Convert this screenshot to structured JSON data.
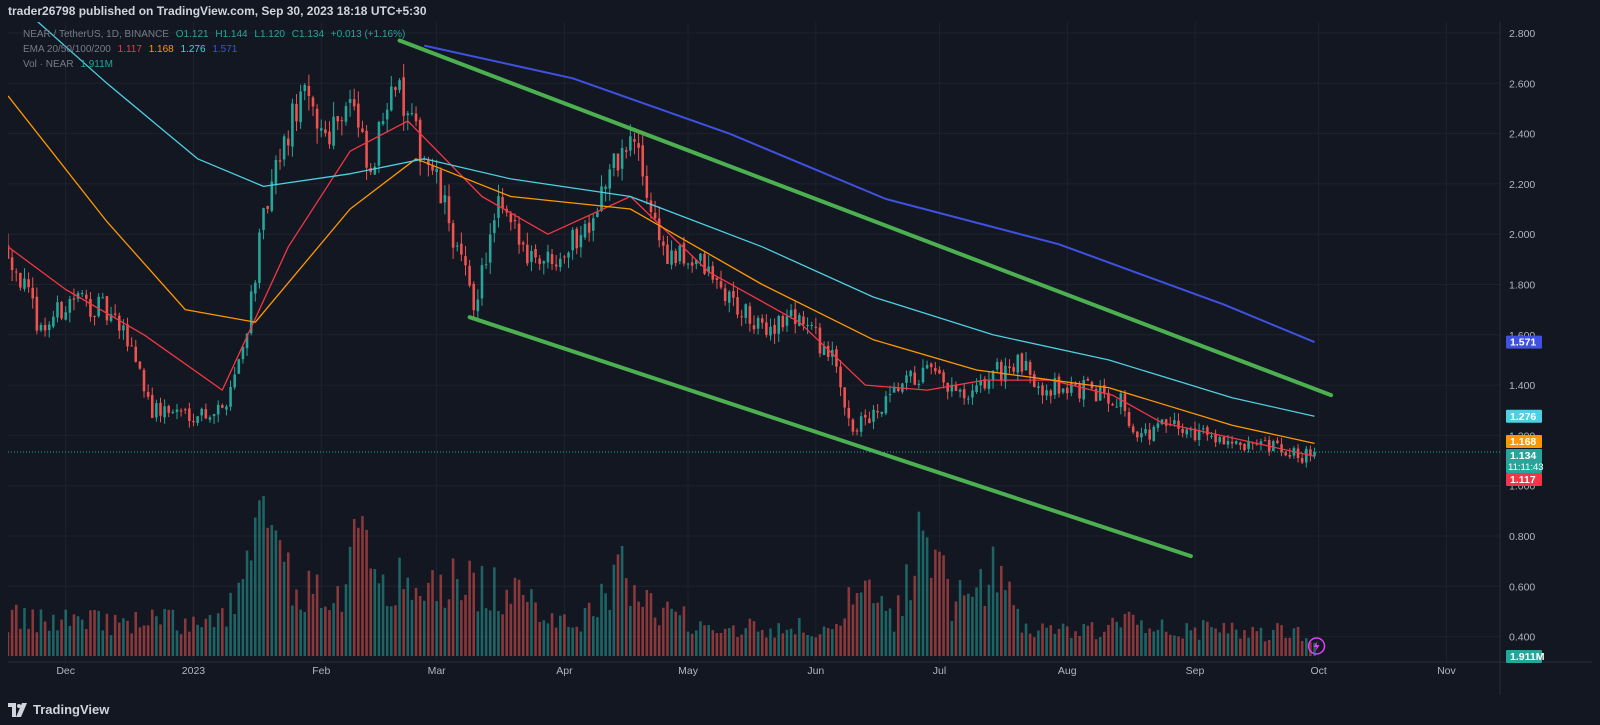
{
  "header": {
    "publish_text": "trader26798 published on TradingView.com, Sep 30, 2023 18:18 UTC+5:30"
  },
  "footer": {
    "brand": "TradingView"
  },
  "legend": {
    "symbol": "NEAR / TetherUS, 1D, BINANCE",
    "open": "O1.121",
    "high": "H1.144",
    "low": "L1.120",
    "close": "C1.134",
    "change": "+0.013 (+1.16%)",
    "ema_label": "EMA 20/50/100/200",
    "ema_values": [
      "1.117",
      "1.168",
      "1.276",
      "1.571"
    ],
    "vol_label": "Vol · NEAR",
    "vol_value": "1.911M"
  },
  "colors": {
    "background": "#131722",
    "up": "#26a69a",
    "down": "#ef5350",
    "ema20": "#f23645",
    "ema50": "#ff9800",
    "ema100": "#4dd0e1",
    "ema200": "#3f51e0",
    "channel": "#4caf50",
    "grid": "#1e222d",
    "text": "#b2b5be"
  },
  "chart_data": {
    "type": "line",
    "title": "NEAR / TetherUS, 1D, BINANCE",
    "y_axis_ticks": [
      "2.800",
      "2.600",
      "2.400",
      "2.200",
      "2.000",
      "1.800",
      "1.600",
      "1.400",
      "1.200",
      "1.000",
      "0.800",
      "0.600",
      "0.400"
    ],
    "ylim": [
      0.35,
      2.85
    ],
    "x_axis_ticks": [
      "Dec",
      "2023",
      "Feb",
      "Mar",
      "Apr",
      "May",
      "Jun",
      "Jul",
      "Aug",
      "Sep",
      "Oct",
      "Nov"
    ],
    "x_axis_dates": [
      "2022-12-01",
      "2023-01-01",
      "2023-02-01",
      "2023-03-01",
      "2023-04-01",
      "2023-05-01",
      "2023-06-01",
      "2023-07-01",
      "2023-08-01",
      "2023-09-01",
      "2023-10-01",
      "2023-11-01"
    ],
    "xlim": [
      "2022-11-17",
      "2023-11-14"
    ],
    "price_path": [
      [
        "2022-11-17",
        1.95
      ],
      [
        "2022-11-25",
        1.62
      ],
      [
        "2022-12-03",
        1.75
      ],
      [
        "2022-12-10",
        1.7
      ],
      [
        "2022-12-17",
        1.56
      ],
      [
        "2022-12-22",
        1.3
      ],
      [
        "2023-01-02",
        1.29
      ],
      [
        "2023-01-08",
        1.3
      ],
      [
        "2023-01-13",
        1.55
      ],
      [
        "2023-01-18",
        2.05
      ],
      [
        "2023-01-22",
        2.3
      ],
      [
        "2023-01-27",
        2.55
      ],
      [
        "2023-02-02",
        2.4
      ],
      [
        "2023-02-08",
        2.55
      ],
      [
        "2023-02-13",
        2.2
      ],
      [
        "2023-02-18",
        2.65
      ],
      [
        "2023-02-22",
        2.45
      ],
      [
        "2023-02-28",
        2.25
      ],
      [
        "2023-03-04",
        2.05
      ],
      [
        "2023-03-10",
        1.72
      ],
      [
        "2023-03-16",
        2.1
      ],
      [
        "2023-03-22",
        1.95
      ],
      [
        "2023-03-28",
        1.9
      ],
      [
        "2023-04-05",
        2.0
      ],
      [
        "2023-04-14",
        2.3
      ],
      [
        "2023-04-18",
        2.37
      ],
      [
        "2023-04-22",
        2.1
      ],
      [
        "2023-04-26",
        1.9
      ],
      [
        "2023-05-03",
        1.9
      ],
      [
        "2023-05-09",
        1.78
      ],
      [
        "2023-05-18",
        1.62
      ],
      [
        "2023-05-28",
        1.68
      ],
      [
        "2023-06-05",
        1.5
      ],
      [
        "2023-06-10",
        1.23
      ],
      [
        "2023-06-16",
        1.28
      ],
      [
        "2023-06-22",
        1.4
      ],
      [
        "2023-06-28",
        1.45
      ],
      [
        "2023-07-02",
        1.4
      ],
      [
        "2023-07-08",
        1.33
      ],
      [
        "2023-07-14",
        1.45
      ],
      [
        "2023-07-20",
        1.48
      ],
      [
        "2023-07-26",
        1.4
      ],
      [
        "2023-08-05",
        1.38
      ],
      [
        "2023-08-14",
        1.35
      ],
      [
        "2023-08-18",
        1.18
      ],
      [
        "2023-08-24",
        1.24
      ],
      [
        "2023-08-30",
        1.22
      ],
      [
        "2023-09-07",
        1.2
      ],
      [
        "2023-09-12",
        1.14
      ],
      [
        "2023-09-19",
        1.15
      ],
      [
        "2023-09-25",
        1.12
      ],
      [
        "2023-09-30",
        1.134
      ]
    ],
    "series": [
      {
        "name": "EMA 20",
        "last": 1.117,
        "x": [
          "2022-11-17",
          "2022-12-01",
          "2022-12-20",
          "2023-01-08",
          "2023-01-24",
          "2023-02-08",
          "2023-02-22",
          "2023-03-12",
          "2023-03-28",
          "2023-04-17",
          "2023-05-06",
          "2023-05-28",
          "2023-06-13",
          "2023-06-28",
          "2023-07-12",
          "2023-07-28",
          "2023-08-12",
          "2023-08-24",
          "2023-09-10",
          "2023-09-30"
        ],
        "y": [
          1.95,
          1.78,
          1.6,
          1.38,
          1.95,
          2.33,
          2.45,
          2.15,
          2.0,
          2.15,
          1.85,
          1.65,
          1.4,
          1.38,
          1.42,
          1.42,
          1.36,
          1.25,
          1.19,
          1.117
        ]
      },
      {
        "name": "EMA 50",
        "last": 1.168,
        "x": [
          "2022-11-17",
          "2022-12-11",
          "2022-12-30",
          "2023-01-16",
          "2023-02-08",
          "2023-02-24",
          "2023-03-19",
          "2023-04-17",
          "2023-05-19",
          "2023-06-15",
          "2023-07-10",
          "2023-08-11",
          "2023-09-10",
          "2023-09-30"
        ],
        "y": [
          2.55,
          2.05,
          1.7,
          1.65,
          2.1,
          2.3,
          2.15,
          2.1,
          1.8,
          1.58,
          1.46,
          1.39,
          1.24,
          1.168
        ]
      },
      {
        "name": "EMA 100",
        "last": 1.276,
        "x": [
          "2022-11-17",
          "2022-12-11",
          "2023-01-02",
          "2023-01-18",
          "2023-02-08",
          "2023-02-26",
          "2023-03-19",
          "2023-04-17",
          "2023-05-19",
          "2023-06-15",
          "2023-07-14",
          "2023-08-11",
          "2023-09-10",
          "2023-09-30"
        ],
        "y": [
          2.95,
          2.6,
          2.3,
          2.19,
          2.24,
          2.3,
          2.22,
          2.15,
          1.95,
          1.75,
          1.6,
          1.5,
          1.35,
          1.276
        ]
      },
      {
        "name": "EMA 200",
        "last": 1.571,
        "x": [
          "2023-02-26",
          "2023-04-03",
          "2023-05-11",
          "2023-06-18",
          "2023-07-30",
          "2023-09-08",
          "2023-09-30"
        ],
        "y": [
          2.75,
          2.62,
          2.4,
          2.14,
          1.96,
          1.72,
          1.571
        ]
      }
    ],
    "trendlines": [
      {
        "name": "channel-upper",
        "x": [
          "2023-02-20",
          "2023-10-04"
        ],
        "y": [
          2.77,
          1.36
        ]
      },
      {
        "name": "channel-lower",
        "x": [
          "2023-03-09",
          "2023-08-31"
        ],
        "y": [
          1.67,
          0.72
        ]
      }
    ],
    "volume_note": "Volume bars (M) in the lower pane; approximate values, unscaled axis",
    "volume": [
      [
        "2022-11-17",
        0.8
      ],
      [
        "2022-11-25",
        0.7
      ],
      [
        "2022-12-05",
        0.9
      ],
      [
        "2022-12-15",
        0.6
      ],
      [
        "2022-12-22",
        0.8
      ],
      [
        "2023-01-04",
        0.6
      ],
      [
        "2023-01-12",
        1.2
      ],
      [
        "2023-01-18",
        3.0
      ],
      [
        "2023-01-22",
        1.8
      ],
      [
        "2023-01-28",
        1.4
      ],
      [
        "2023-02-05",
        1.2
      ],
      [
        "2023-02-10",
        2.4
      ],
      [
        "2023-02-18",
        1.6
      ],
      [
        "2023-02-24",
        1.3
      ],
      [
        "2023-03-08",
        1.6
      ],
      [
        "2023-03-20",
        1.2
      ],
      [
        "2023-04-05",
        0.7
      ],
      [
        "2023-04-16",
        1.8
      ],
      [
        "2023-04-24",
        0.9
      ],
      [
        "2023-05-10",
        0.6
      ],
      [
        "2023-05-26",
        0.6
      ],
      [
        "2023-06-06",
        0.5
      ],
      [
        "2023-06-11",
        1.4
      ],
      [
        "2023-06-20",
        0.7
      ],
      [
        "2023-06-28",
        2.9
      ],
      [
        "2023-07-04",
        1.0
      ],
      [
        "2023-07-14",
        1.7
      ],
      [
        "2023-07-22",
        0.6
      ],
      [
        "2023-08-06",
        0.5
      ],
      [
        "2023-08-16",
        0.7
      ],
      [
        "2023-08-26",
        0.6
      ],
      [
        "2023-09-08",
        0.5
      ],
      [
        "2023-09-16",
        0.5
      ],
      [
        "2023-09-24",
        0.5
      ],
      [
        "2023-09-30",
        0.4
      ]
    ],
    "price_tags": [
      {
        "label": "1.571",
        "value": 1.571,
        "color": "#3f51e0"
      },
      {
        "label": "1.276",
        "value": 1.276,
        "color": "#4dd0e1"
      },
      {
        "label": "1.168",
        "value": 1.168,
        "color": "#ff9800"
      },
      {
        "label": "1.134",
        "sub": "11:11:43",
        "value": 1.134,
        "color": "#26a69a"
      },
      {
        "label": "1.117",
        "value": 1.117,
        "color": "#f23645"
      },
      {
        "label": "1.911M",
        "value": 1.911,
        "color": "#26a69a",
        "pane": "volume"
      }
    ],
    "current_price": 1.134,
    "countdown": "11:11:43"
  }
}
